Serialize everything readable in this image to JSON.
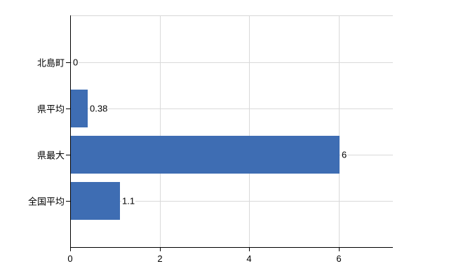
{
  "chart_data": {
    "type": "bar",
    "orientation": "horizontal",
    "title": "",
    "categories": [
      "北島町",
      "県平均",
      "県最大",
      "全国平均"
    ],
    "values": [
      0,
      0.38,
      6,
      1.1
    ],
    "value_labels": [
      "0",
      "0.38",
      "6",
      "1.1"
    ],
    "x_ticks": [
      0,
      2,
      4,
      6
    ],
    "x_tick_labels": [
      "0",
      "2",
      "4",
      "6"
    ],
    "xlim": [
      0,
      7.2
    ],
    "grid": true,
    "legend": false,
    "colors": {
      "bar": "#3e6db3",
      "gridline": "#d9d9d9",
      "top_border": "#d6d6d6",
      "axis": "#000000",
      "text": "#000000",
      "background": "#ffffff"
    }
  }
}
